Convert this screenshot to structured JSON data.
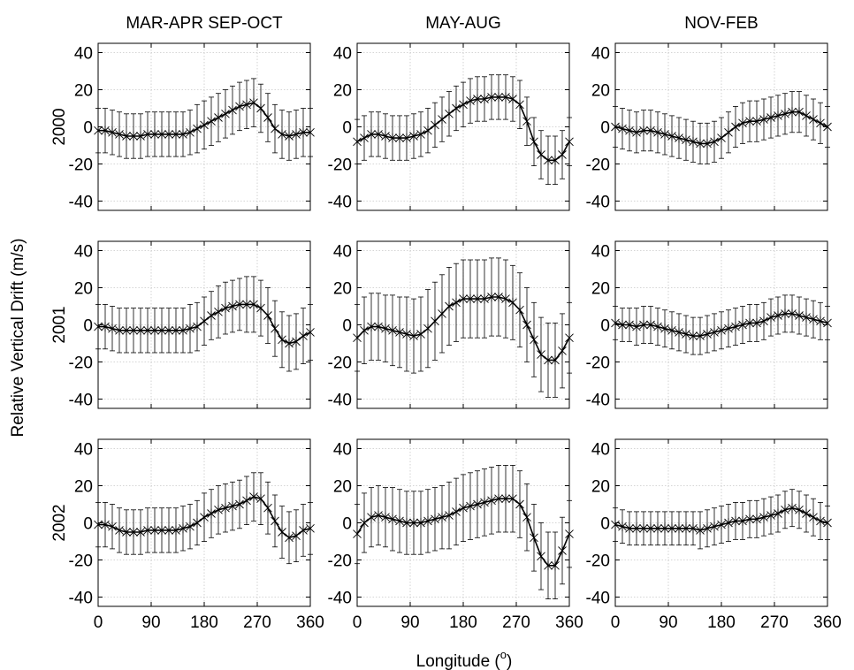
{
  "figure": {
    "xlabel_main": "Longitude (",
    "xlabel_deg": "o",
    "xlabel_close": ")",
    "ylabel": "Relative Vertical Drift (m/s)"
  },
  "chart_data": {
    "type": "line",
    "columns": [
      "MAR-APR SEP-OCT",
      "MAY-AUG",
      "NOV-FEB"
    ],
    "rows": [
      "2000",
      "2001",
      "2002"
    ],
    "xlim": [
      0,
      360
    ],
    "ylim": [
      -45,
      45
    ],
    "xticks": [
      0,
      90,
      180,
      270,
      360
    ],
    "yticks": [
      -40,
      -20,
      0,
      20,
      40
    ],
    "grid": true,
    "x": [
      0,
      12,
      24,
      36,
      48,
      60,
      72,
      84,
      96,
      108,
      120,
      132,
      144,
      156,
      168,
      180,
      192,
      204,
      216,
      228,
      240,
      252,
      264,
      276,
      288,
      300,
      312,
      324,
      336,
      348,
      360
    ],
    "panels": [
      {
        "row": "2000",
        "column": "MAR-APR SEP-OCT",
        "y": [
          -2,
          -2,
          -3,
          -4,
          -5,
          -5,
          -5,
          -4,
          -4,
          -4,
          -4,
          -4,
          -4,
          -3,
          -1,
          1,
          3,
          5,
          7,
          9,
          11,
          12,
          13,
          10,
          5,
          -1,
          -4,
          -5,
          -4,
          -3,
          -3
        ],
        "err": [
          12,
          12,
          12,
          12,
          12,
          12,
          12,
          12,
          12,
          12,
          12,
          12,
          12,
          12,
          13,
          13,
          13,
          13,
          13,
          13,
          13,
          13,
          13,
          13,
          13,
          13,
          13,
          13,
          13,
          13,
          13
        ]
      },
      {
        "row": "2000",
        "column": "MAY-AUG",
        "y": [
          -8,
          -6,
          -4,
          -4,
          -5,
          -6,
          -6,
          -6,
          -5,
          -4,
          -2,
          1,
          4,
          7,
          10,
          12,
          14,
          15,
          15,
          16,
          16,
          16,
          15,
          12,
          3,
          -8,
          -15,
          -18,
          -18,
          -15,
          -8
        ],
        "err": [
          12,
          12,
          12,
          12,
          12,
          12,
          12,
          12,
          12,
          12,
          12,
          12,
          12,
          12,
          12,
          12,
          12,
          12,
          12,
          12,
          12,
          12,
          12,
          13,
          13,
          13,
          13,
          13,
          13,
          13,
          13
        ]
      },
      {
        "row": "2000",
        "column": "NOV-FEB",
        "y": [
          0,
          -1,
          -2,
          -3,
          -2,
          -2,
          -3,
          -4,
          -5,
          -6,
          -7,
          -8,
          -9,
          -9,
          -8,
          -6,
          -3,
          0,
          2,
          3,
          3,
          4,
          5,
          6,
          7,
          8,
          8,
          6,
          4,
          2,
          0
        ],
        "err": [
          11,
          11,
          11,
          11,
          11,
          11,
          11,
          11,
          11,
          11,
          11,
          11,
          11,
          11,
          11,
          11,
          11,
          11,
          11,
          11,
          11,
          11,
          11,
          11,
          11,
          11,
          11,
          11,
          11,
          11,
          11
        ]
      },
      {
        "row": "2001",
        "column": "MAR-APR SEP-OCT",
        "y": [
          -1,
          -1,
          -2,
          -3,
          -3,
          -3,
          -3,
          -3,
          -3,
          -3,
          -3,
          -3,
          -3,
          -2,
          -1,
          2,
          5,
          7,
          9,
          10,
          11,
          11,
          11,
          9,
          5,
          -2,
          -8,
          -10,
          -9,
          -6,
          -4
        ],
        "err": [
          12,
          12,
          12,
          12,
          12,
          12,
          12,
          12,
          12,
          12,
          12,
          12,
          12,
          13,
          13,
          13,
          13,
          14,
          14,
          14,
          14,
          15,
          15,
          15,
          15,
          15,
          15,
          15,
          15,
          15,
          15
        ]
      },
      {
        "row": "2001",
        "column": "MAY-AUG",
        "y": [
          -7,
          -3,
          -1,
          -1,
          -2,
          -3,
          -4,
          -5,
          -6,
          -5,
          -2,
          2,
          6,
          10,
          12,
          14,
          14,
          14,
          14,
          15,
          15,
          14,
          12,
          8,
          0,
          -8,
          -16,
          -19,
          -19,
          -14,
          -7
        ],
        "err": [
          18,
          18,
          18,
          18,
          18,
          19,
          19,
          20,
          20,
          20,
          21,
          21,
          21,
          21,
          21,
          21,
          21,
          21,
          21,
          21,
          21,
          21,
          20,
          20,
          20,
          20,
          20,
          20,
          20,
          20,
          19
        ]
      },
      {
        "row": "2001",
        "column": "NOV-FEB",
        "y": [
          1,
          0,
          0,
          -1,
          0,
          0,
          -1,
          -2,
          -3,
          -4,
          -5,
          -6,
          -6,
          -5,
          -4,
          -3,
          -2,
          -1,
          0,
          1,
          1,
          2,
          4,
          5,
          6,
          6,
          5,
          4,
          3,
          2,
          1
        ],
        "err": [
          9,
          9,
          9,
          10,
          10,
          10,
          10,
          10,
          10,
          10,
          10,
          10,
          10,
          10,
          10,
          10,
          10,
          10,
          10,
          10,
          10,
          10,
          10,
          10,
          10,
          10,
          10,
          10,
          10,
          10,
          9
        ]
      },
      {
        "row": "2002",
        "column": "MAR-APR SEP-OCT",
        "y": [
          -1,
          -1,
          -2,
          -4,
          -5,
          -5,
          -5,
          -4,
          -4,
          -4,
          -4,
          -4,
          -3,
          -2,
          0,
          3,
          5,
          7,
          8,
          9,
          10,
          12,
          14,
          13,
          8,
          1,
          -5,
          -8,
          -7,
          -4,
          -3
        ],
        "err": [
          12,
          12,
          12,
          12,
          12,
          12,
          12,
          12,
          12,
          12,
          12,
          12,
          12,
          12,
          12,
          13,
          13,
          13,
          13,
          13,
          13,
          13,
          13,
          14,
          14,
          14,
          14,
          14,
          14,
          14,
          14
        ]
      },
      {
        "row": "2002",
        "column": "MAY-AUG",
        "y": [
          -6,
          0,
          3,
          4,
          3,
          2,
          1,
          0,
          0,
          0,
          1,
          2,
          3,
          4,
          6,
          8,
          9,
          10,
          11,
          12,
          13,
          13,
          13,
          10,
          3,
          -8,
          -18,
          -23,
          -23,
          -15,
          -6
        ],
        "err": [
          16,
          16,
          16,
          16,
          16,
          17,
          17,
          17,
          17,
          17,
          17,
          17,
          17,
          18,
          18,
          18,
          18,
          18,
          18,
          18,
          18,
          18,
          18,
          18,
          18,
          18,
          18,
          18,
          18,
          18,
          18
        ]
      },
      {
        "row": "2002",
        "column": "NOV-FEB",
        "y": [
          -1,
          -2,
          -3,
          -3,
          -3,
          -3,
          -3,
          -3,
          -3,
          -3,
          -3,
          -3,
          -4,
          -3,
          -2,
          -1,
          0,
          1,
          1,
          2,
          2,
          3,
          4,
          5,
          7,
          8,
          7,
          5,
          3,
          1,
          0
        ],
        "err": [
          9,
          9,
          9,
          9,
          9,
          9,
          9,
          9,
          9,
          9,
          9,
          9,
          10,
          10,
          10,
          10,
          10,
          10,
          10,
          10,
          10,
          10,
          10,
          10,
          10,
          10,
          10,
          10,
          10,
          10,
          9
        ]
      }
    ]
  }
}
